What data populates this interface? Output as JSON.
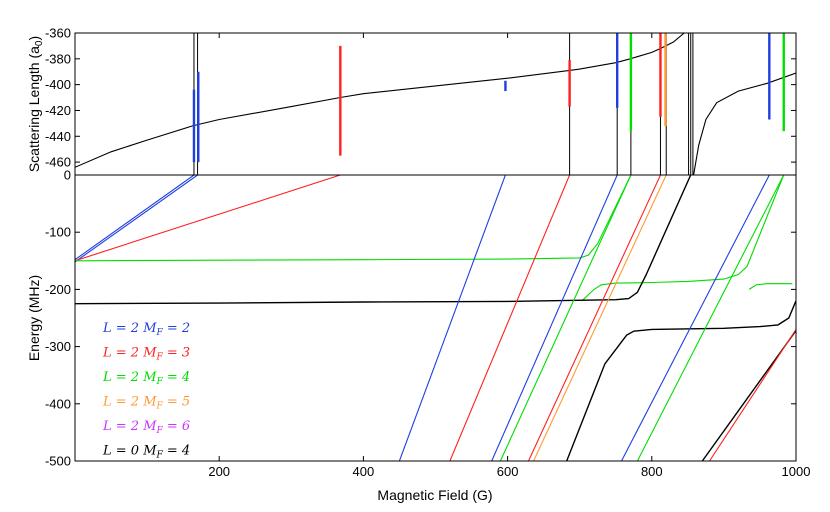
{
  "chart_data": [
    {
      "type": "line",
      "panel": "top",
      "ylabel": "Scattering Length (a",
      "ylabel_sub": "0",
      "ylabel_close": ")",
      "ylim": [
        -470,
        -360
      ],
      "xlim": [
        0,
        1000
      ],
      "y_ticks": [
        "-360",
        "-380",
        "-400",
        "-420",
        "-440",
        "-460",
        "0"
      ],
      "x_ticks": [],
      "grid": false,
      "background": {
        "name": "scattering length",
        "color": "#000000",
        "points": [
          [
            0,
            -464
          ],
          [
            50,
            -452
          ],
          [
            100,
            -443
          ],
          [
            163,
            -432
          ],
          [
            200,
            -427
          ],
          [
            300,
            -417
          ],
          [
            368,
            -410
          ],
          [
            400,
            -407
          ],
          [
            500,
            -401
          ],
          [
            600,
            -395
          ],
          [
            686,
            -389
          ],
          [
            700,
            -388
          ],
          [
            750,
            -383
          ],
          [
            770,
            -380
          ],
          [
            800,
            -375
          ],
          [
            812,
            -372
          ],
          [
            830,
            -367
          ],
          [
            845,
            -360
          ]
        ],
        "after_points": [
          [
            858,
            -470
          ],
          [
            865,
            -447
          ],
          [
            875,
            -427
          ],
          [
            890,
            -414
          ],
          [
            920,
            -405
          ],
          [
            960,
            -399
          ],
          [
            1000,
            -391
          ]
        ]
      },
      "resonances": [
        {
          "x": 165,
          "color": "#000000"
        },
        {
          "x": 170,
          "color": "#000000"
        },
        {
          "x": 686,
          "color": "#000000"
        },
        {
          "x": 752,
          "color": "#000000"
        },
        {
          "x": 771,
          "color": "#000000"
        },
        {
          "x": 812,
          "color": "#000000"
        },
        {
          "x": 820,
          "color": "#000000"
        },
        {
          "x": 851,
          "color": "#000000"
        },
        {
          "x": 854,
          "color": "#000000"
        },
        {
          "x": 857,
          "color": "#000000"
        }
      ],
      "markers": [
        {
          "x": 165,
          "y0": -460,
          "y1": -404,
          "color": "#1f3fe0"
        },
        {
          "x": 171,
          "y0": -460,
          "y1": -390,
          "color": "#1f3fe0"
        },
        {
          "x": 368,
          "y0": -455,
          "y1": -370,
          "color": "#ff2020"
        },
        {
          "x": 597,
          "y0": -405,
          "y1": -397,
          "color": "#1f3fe0"
        },
        {
          "x": 686,
          "y0": -417,
          "y1": -381,
          "color": "#ff2020"
        },
        {
          "x": 752,
          "y0": -418,
          "y1": -360,
          "color": "#1f3fe0"
        },
        {
          "x": 771,
          "y0": -436,
          "y1": -360,
          "color": "#00dd00"
        },
        {
          "x": 812,
          "y0": -425,
          "y1": -360,
          "color": "#ff2020"
        },
        {
          "x": 819,
          "y0": -432,
          "y1": -360,
          "color": "#ff9933"
        },
        {
          "x": 963,
          "y0": -427,
          "y1": -360,
          "color": "#1f3fe0"
        },
        {
          "x": 983,
          "y0": -436,
          "y1": -360,
          "color": "#00dd00"
        }
      ]
    },
    {
      "type": "line",
      "panel": "bottom",
      "ylabel": "Energy (MHz)",
      "xlabel": "Magnetic Field (G)",
      "xlim": [
        0,
        1000
      ],
      "ylim": [
        -500,
        0
      ],
      "x_ticks": [
        "200",
        "400",
        "600",
        "800",
        "1000"
      ],
      "y_ticks": [
        "-100",
        "-200",
        "-300",
        "-400",
        "-500"
      ],
      "grid": false,
      "legend_position": "bottom-left",
      "series": [
        {
          "color": "#1f3fe0",
          "points": [
            [
              0,
              -148
            ],
            [
              165,
              0
            ]
          ]
        },
        {
          "color": "#1f3fe0",
          "points": [
            [
              0,
              -152
            ],
            [
              170,
              0
            ]
          ]
        },
        {
          "color": "#ff2020",
          "points": [
            [
              0,
              -150
            ],
            [
              368,
              0
            ]
          ]
        },
        {
          "color": "#00dd00",
          "points": [
            [
              0,
              -150
            ],
            [
              200,
              -149
            ],
            [
              400,
              -148
            ],
            [
              600,
              -147
            ],
            [
              700,
              -145
            ],
            [
              712,
              -140
            ],
            [
              725,
              -120
            ],
            [
              771,
              0
            ]
          ]
        },
        {
          "color": "#00dd00",
          "points": [
            [
              703,
              -220
            ],
            [
              720,
              -200
            ],
            [
              730,
              -192
            ],
            [
              750,
              -189
            ],
            [
              800,
              -188
            ],
            [
              850,
              -186
            ],
            [
              900,
              -182
            ],
            [
              920,
              -174
            ],
            [
              932,
              -160
            ],
            [
              983,
              0
            ]
          ]
        },
        {
          "color": "#00dd00",
          "points": [
            [
              935,
              -200
            ],
            [
              945,
              -192
            ],
            [
              960,
              -190
            ],
            [
              995,
              -190
            ]
          ]
        },
        {
          "color": "#000000",
          "points": [
            [
              0,
              -225
            ],
            [
              200,
              -224
            ],
            [
              400,
              -222
            ],
            [
              600,
              -221
            ],
            [
              750,
              -218
            ],
            [
              768,
              -216
            ],
            [
              780,
              -205
            ],
            [
              792,
              -175
            ],
            [
              854,
              0
            ]
          ]
        },
        {
          "color": "#000000",
          "points": [
            [
              682,
              -500
            ],
            [
              735,
              -330
            ],
            [
              765,
              -280
            ],
            [
              775,
              -273
            ],
            [
              800,
              -270
            ],
            [
              900,
              -268
            ],
            [
              950,
              -265
            ],
            [
              975,
              -262
            ],
            [
              990,
              -250
            ],
            [
              1000,
              -220
            ]
          ]
        },
        {
          "color": "#000000",
          "points": [
            [
              870,
              -500
            ],
            [
              1000,
              -272
            ]
          ]
        },
        {
          "color": "#1f3fe0",
          "points": [
            [
              450,
              -500
            ],
            [
              597,
              0
            ]
          ]
        },
        {
          "color": "#1f3fe0",
          "points": [
            [
              578,
              -500
            ],
            [
              752,
              0
            ]
          ]
        },
        {
          "color": "#1f3fe0",
          "points": [
            [
              758,
              -500
            ],
            [
              963,
              0
            ]
          ]
        },
        {
          "color": "#ff2020",
          "points": [
            [
              520,
              -500
            ],
            [
              686,
              0
            ]
          ]
        },
        {
          "color": "#ff2020",
          "points": [
            [
              629,
              -500
            ],
            [
              812,
              0
            ]
          ]
        },
        {
          "color": "#ff2020",
          "points": [
            [
              880,
              -500
            ],
            [
              1000,
              -270
            ]
          ]
        },
        {
          "color": "#00dd00",
          "points": [
            [
              590,
              -500
            ],
            [
              771,
              0
            ]
          ]
        },
        {
          "color": "#00dd00",
          "points": [
            [
              780,
              -500
            ],
            [
              983,
              0
            ]
          ]
        },
        {
          "color": "#ff9933",
          "points": [
            [
              636,
              -500
            ],
            [
              820,
              0
            ]
          ]
        }
      ],
      "legend": [
        {
          "color": "#1f3fe0",
          "label": "L = 2 M",
          "sub": "F",
          "tail": " = 2"
        },
        {
          "color": "#ff2020",
          "label": "L = 2 M",
          "sub": "F",
          "tail": " = 3"
        },
        {
          "color": "#00dd00",
          "label": "L = 2 M",
          "sub": "F",
          "tail": " = 4"
        },
        {
          "color": "#ff9933",
          "label": "L = 2 M",
          "sub": "F",
          "tail": " = 5"
        },
        {
          "color": "#cc33ff",
          "label": "L = 2 M",
          "sub": "F",
          "tail": " = 6"
        },
        {
          "color": "#000000",
          "label": "L = 0 M",
          "sub": "F",
          "tail": " = 4"
        }
      ]
    }
  ]
}
